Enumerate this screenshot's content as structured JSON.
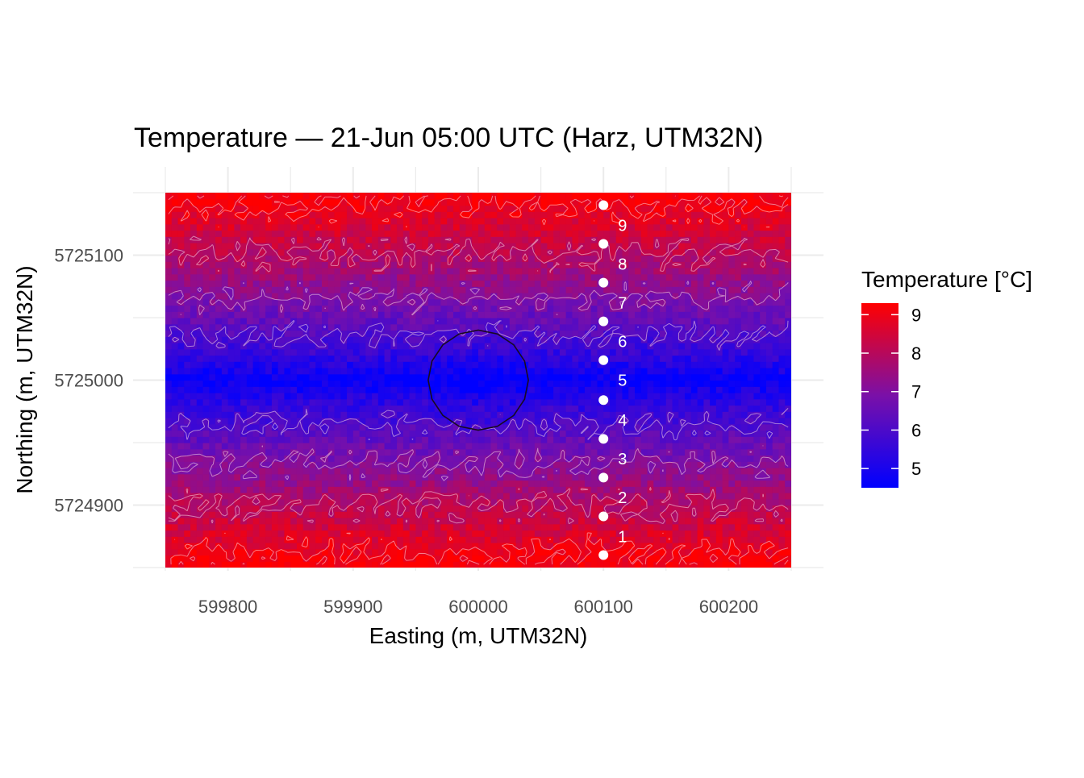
{
  "chart_data": {
    "type": "heatmap",
    "title": "Temperature — 21-Jun 05:00 UTC (Harz, UTM32N)",
    "xlabel": "Easting (m, UTM32N)",
    "ylabel": "Northing (m, UTM32N)",
    "xlim": [
      599750,
      600250
    ],
    "ylim": [
      5724850,
      5725150
    ],
    "x_ticks": [
      599800,
      599900,
      600000,
      600100,
      600200
    ],
    "x_tick_labels": [
      "599800",
      "599900",
      "600000",
      "600100",
      "600200"
    ],
    "y_ticks": [
      5724900,
      5725000,
      5725100
    ],
    "y_tick_labels": [
      "5724900",
      "5725000",
      "5725100"
    ],
    "grid": true,
    "field": {
      "description_units": "°C",
      "min_value": 4.5,
      "max_value": 9.3,
      "center_northing": 5725000,
      "half_range_northing": 150,
      "dip_center_easting": 600000,
      "dip_radius_m": 40
    },
    "contour_levels": [
      6,
      7,
      8,
      9
    ],
    "circle_outline": {
      "center_easting": 600000,
      "center_northing": 5725000,
      "radius_m": 40
    },
    "transect_points": {
      "easting": 600100,
      "northings": [
        5724860,
        5724891,
        5724922,
        5724953,
        5724984,
        5725016,
        5725047,
        5725078,
        5725109,
        5725140
      ],
      "labels": [
        "1",
        "2",
        "3",
        "4",
        "5",
        "6",
        "7",
        "8",
        "9"
      ],
      "label_northings": [
        5724875,
        5724906,
        5724937,
        5724968,
        5725000,
        5725031,
        5725062,
        5725093,
        5725124
      ]
    },
    "legend": {
      "title": "Temperature [°C]",
      "position": "right",
      "range": [
        4.5,
        9.3
      ],
      "ticks": [
        5,
        6,
        7,
        8,
        9
      ],
      "tick_labels": [
        "5",
        "6",
        "7",
        "8",
        "9"
      ],
      "low_color": "#0000ff",
      "high_color": "#ff0000"
    }
  }
}
